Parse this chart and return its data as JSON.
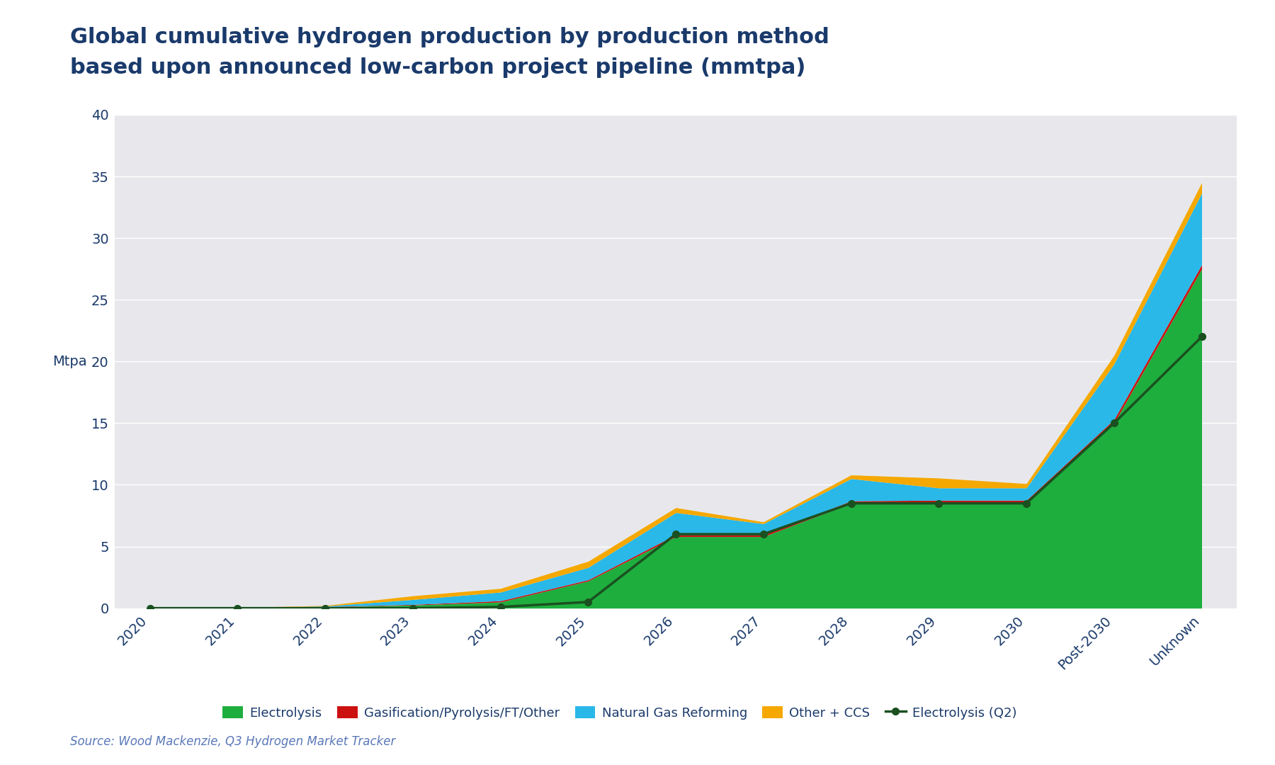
{
  "title_line1": "Global cumulative hydrogen production by production method",
  "title_line2": "based upon announced low-carbon project pipeline (mmtpa)",
  "ylabel": "Mtpa",
  "source": "Source: Wood Mackenzie, Q3 Hydrogen Market Tracker",
  "plot_bg_color": "#e8e8ec",
  "fig_bg_color": "#ffffff",
  "title_color": "#1a3a6b",
  "axis_label_color": "#1a3a6b",
  "tick_color": "#1a3a6b",
  "categories": [
    "2020",
    "2021",
    "2022",
    "2023",
    "2024",
    "2025",
    "2026",
    "2027",
    "2028",
    "2029",
    "2030",
    "Post-2030",
    "Unknown"
  ],
  "electrolysis": [
    0.05,
    0.05,
    0.1,
    0.25,
    0.5,
    2.2,
    5.8,
    5.8,
    8.5,
    8.5,
    8.5,
    15.0,
    27.5
  ],
  "gasification": [
    0.0,
    0.0,
    0.02,
    0.05,
    0.1,
    0.1,
    0.15,
    0.15,
    0.2,
    0.25,
    0.25,
    0.3,
    0.35
  ],
  "nat_gas": [
    0.0,
    0.0,
    0.05,
    0.4,
    0.7,
    1.0,
    1.8,
    0.9,
    1.8,
    1.0,
    1.0,
    4.5,
    5.8
  ],
  "other_ccs": [
    0.0,
    0.0,
    0.05,
    0.3,
    0.3,
    0.5,
    0.4,
    0.15,
    0.3,
    0.8,
    0.35,
    0.7,
    0.85
  ],
  "electrolysis_q2": [
    0.0,
    0.0,
    0.0,
    0.0,
    0.1,
    0.5,
    6.0,
    6.0,
    8.5,
    8.5,
    8.5,
    15.0,
    22.0
  ],
  "electrolysis_color": "#1eae3e",
  "gasification_color": "#cc1111",
  "nat_gas_color": "#29b8e8",
  "other_ccs_color": "#f5a800",
  "electrolysis_q2_color": "#1a5020",
  "grid_color": "#ffffff",
  "ylim": [
    0,
    40
  ],
  "yticks": [
    0,
    5,
    10,
    15,
    20,
    25,
    30,
    35,
    40
  ],
  "legend_labels": [
    "Electrolysis",
    "Gasification/Pyrolysis/FT/Other",
    "Natural Gas Reforming",
    "Other + CCS",
    "Electrolysis (Q2)"
  ],
  "title_fontsize": 22,
  "tick_fontsize": 14,
  "ylabel_fontsize": 14,
  "legend_fontsize": 13,
  "source_fontsize": 12
}
